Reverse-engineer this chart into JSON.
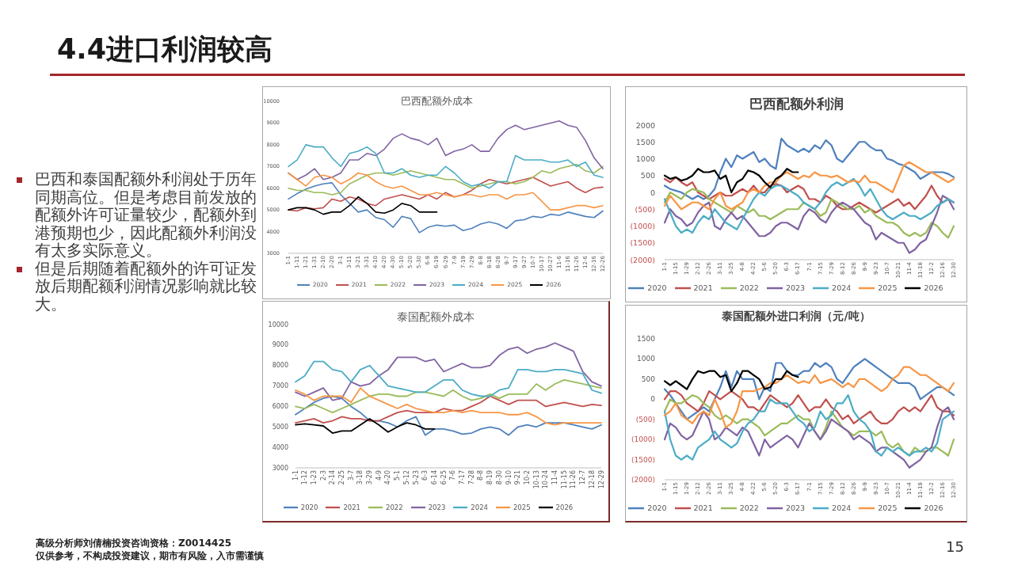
{
  "chart_data": [
    {
      "type": "other",
      "title": "4.4进口利润较高",
      "annotations": [
        "巴西和泰国配额外利润处于历年同期高位。但是考虑目前发放的配额外许可证量较少，配额外到港预期也少，因此配额外利润没有太多实际意义。",
        "但是后期随着配额外的许可证发放后期配额利润情况影响就比较大。"
      ]
    },
    {
      "type": "line",
      "title": "巴西配额外成本",
      "categories": [
        "1-1",
        "1-11",
        "1-21",
        "1-31",
        "2-10",
        "2-20",
        "3-1",
        "3-11",
        "3-21",
        "3-31",
        "4-10",
        "4-20",
        "4-30",
        "5-10",
        "5-20",
        "5-30",
        "6-9",
        "6-19",
        "6-29",
        "7-9",
        "7-19",
        "7-29",
        "8-8",
        "8-18",
        "8-28",
        "9-7",
        "9-17",
        "9-27",
        "10-7",
        "10-17",
        "10-27",
        "11-6",
        "11-16",
        "11-26",
        "12-6",
        "12-16",
        "12-26"
      ],
      "ylim": [
        3000,
        10000
      ],
      "yticks": [
        3000,
        4000,
        5000,
        6000,
        7000,
        8000,
        9000,
        10000
      ],
      "legend": "bottom",
      "marker": "none",
      "line_style": "solid",
      "series": [
        {
          "name": "2020",
          "color": "#4f81bd",
          "values": [
            5500,
            5750,
            5950,
            6100,
            6200,
            6250,
            5700,
            5300,
            4900,
            5000,
            4650,
            4550,
            4200,
            4700,
            4600,
            3950,
            4200,
            4300,
            4250,
            4300,
            4050,
            4150,
            4350,
            4450,
            4350,
            4150,
            4500,
            4550,
            4700,
            4650,
            4800,
            4750,
            4900,
            4800,
            4700,
            4650,
            4950
          ]
        },
        {
          "name": "2021",
          "color": "#c0504d",
          "values": [
            5000,
            4950,
            5100,
            5050,
            5100,
            5500,
            5400,
            5600,
            5500,
            5300,
            5200,
            5500,
            5600,
            5700,
            5600,
            5500,
            5700,
            5500,
            5800,
            5600,
            5700,
            5900,
            6200,
            6400,
            6300,
            6200,
            6300,
            6400,
            6500,
            6300,
            6100,
            6200,
            6300,
            6000,
            5800,
            6000,
            6050
          ]
        },
        {
          "name": "2022",
          "color": "#9bbb59",
          "values": [
            6000,
            5900,
            5900,
            5800,
            5800,
            5700,
            5800,
            6200,
            6400,
            6600,
            6700,
            6700,
            6600,
            6700,
            6800,
            6700,
            6600,
            6500,
            6400,
            6400,
            6200,
            6000,
            6100,
            6200,
            6300,
            6300,
            6200,
            6300,
            6500,
            6800,
            6700,
            6900,
            7000,
            7100,
            6800,
            6700,
            7000
          ]
        },
        {
          "name": "2023",
          "color": "#8064a2",
          "values": [
            6700,
            6400,
            6600,
            6900,
            6400,
            6500,
            6700,
            7300,
            7300,
            7600,
            7500,
            7800,
            8300,
            8500,
            8300,
            8200,
            8000,
            8300,
            7500,
            7700,
            7800,
            8000,
            7700,
            7700,
            8300,
            8700,
            8900,
            8700,
            8800,
            8900,
            9000,
            9100,
            8900,
            8800,
            8200,
            7400,
            6900
          ]
        },
        {
          "name": "2024",
          "color": "#4bacc6",
          "values": [
            7000,
            7300,
            8000,
            7900,
            7900,
            7400,
            7000,
            7600,
            7700,
            7900,
            7600,
            6700,
            6700,
            6900,
            6600,
            6500,
            6600,
            6600,
            7000,
            6700,
            6300,
            6100,
            6200,
            6000,
            6300,
            6300,
            7500,
            7300,
            7300,
            7300,
            7200,
            7200,
            7300,
            7000,
            7200,
            6600,
            6500
          ]
        },
        {
          "name": "2025",
          "color": "#f79646",
          "values": [
            6700,
            6400,
            6100,
            6500,
            6600,
            6500,
            6200,
            6400,
            6700,
            6600,
            6300,
            6100,
            6000,
            6100,
            5900,
            5700,
            5700,
            5800,
            5700,
            5600,
            5700,
            5700,
            5600,
            5700,
            5700,
            5500,
            5700,
            5700,
            5800,
            5400,
            5000,
            5000,
            5100,
            5200,
            5200,
            5100,
            5200
          ]
        },
        {
          "name": "2026",
          "color": "#000000",
          "values": [
            5000,
            5100,
            5100,
            5000,
            4800,
            4900,
            4900,
            5200,
            5600,
            5300,
            4900,
            4850,
            5000,
            5300,
            5200,
            4900,
            4900,
            4900,
            null,
            null,
            null,
            null,
            null,
            null,
            null,
            null,
            null,
            null,
            null,
            null,
            null,
            null,
            null,
            null,
            null,
            null,
            null
          ]
        }
      ]
    },
    {
      "type": "line",
      "title": "巴西配额外利润",
      "categories": [
        "1-1",
        null,
        "1-15",
        null,
        "1-29",
        null,
        "2-12",
        null,
        "2-26",
        null,
        "3-11",
        null,
        "3-25",
        null,
        "4-8",
        null,
        "4-22",
        null,
        "5-6",
        null,
        "5-20",
        null,
        "6-3",
        null,
        "6-17",
        null,
        "7-1",
        null,
        "7-15",
        null,
        "7-29",
        null,
        "8-12",
        null,
        "8-26",
        null,
        "9-9",
        null,
        "9-23",
        null,
        "10-7",
        null,
        "10-21",
        null,
        "11-4",
        null,
        "11-18",
        null,
        "12-2",
        null,
        "12-16",
        null,
        "12-30"
      ],
      "ylim": [
        -2000,
        2000
      ],
      "yticks": [
        {
          "value": -2000,
          "label": "(2000)"
        },
        {
          "value": -1500,
          "label": "(1500)"
        },
        {
          "value": -1000,
          "label": "(1000)"
        },
        {
          "value": -500,
          "label": "(500)"
        },
        0,
        500,
        1000,
        1500,
        2000
      ],
      "legend": "bottom",
      "marker": "none",
      "line_style": "solid",
      "series": [
        {
          "name": "2020",
          "color": "#4f81bd",
          "values": [
            200,
            100,
            50,
            0,
            -100,
            -200,
            -100,
            -200,
            -100,
            100,
            600,
            1000,
            750,
            1100,
            1000,
            1100,
            1200,
            900,
            1000,
            800,
            700,
            1600,
            1400,
            1300,
            1200,
            1300,
            1200,
            1400,
            1300,
            1550,
            1400,
            1000,
            900,
            1100,
            1300,
            1500,
            1500,
            1350,
            1250,
            1250,
            1000,
            950,
            850,
            800,
            700,
            600,
            400,
            500,
            600,
            600,
            600,
            550,
            450
          ]
        },
        {
          "name": "2021",
          "color": "#c0504d",
          "values": [
            400,
            300,
            450,
            300,
            200,
            300,
            0,
            -100,
            -200,
            -100,
            0,
            -100,
            -100,
            0,
            100,
            0,
            200,
            0,
            0,
            200,
            250,
            200,
            0,
            100,
            200,
            100,
            -200,
            -200,
            -300,
            -100,
            -200,
            -400,
            -500,
            -500,
            -400,
            -300,
            -400,
            -500,
            -600,
            -500,
            -400,
            -300,
            -200,
            -400,
            -300,
            -500,
            -300,
            -100,
            200,
            -100,
            -300,
            -200,
            -300
          ]
        },
        {
          "name": "2022",
          "color": "#9bbb59",
          "values": [
            -300,
            0,
            -100,
            -200,
            0,
            100,
            50,
            0,
            -200,
            -300,
            -400,
            -500,
            -600,
            -400,
            -500,
            -600,
            -500,
            -700,
            -700,
            -800,
            -700,
            -600,
            -500,
            -500,
            -500,
            -300,
            -400,
            -500,
            -700,
            -600,
            -200,
            -300,
            -400,
            -500,
            -500,
            -400,
            -600,
            -500,
            -700,
            -800,
            -900,
            -900,
            -1000,
            -1200,
            -1300,
            -1200,
            -1300,
            -1200,
            -900,
            -1000,
            -1200,
            -1350,
            -1000
          ]
        },
        {
          "name": "2023",
          "color": "#8064a2",
          "values": [
            -900,
            -500,
            -700,
            -800,
            -1000,
            -900,
            -600,
            -400,
            -300,
            -1000,
            -1100,
            -800,
            -600,
            -800,
            -700,
            -900,
            -1100,
            -1300,
            -1300,
            -1200,
            -1000,
            -900,
            -900,
            -1000,
            -1100,
            -700,
            -500,
            -600,
            -800,
            -900,
            -600,
            -400,
            -300,
            -400,
            -500,
            -700,
            -900,
            -1000,
            -1400,
            -1200,
            -1300,
            -1400,
            -1500,
            -1500,
            -1800,
            -1700,
            -1500,
            -1400,
            -1000,
            -600,
            -100,
            -200,
            -500
          ]
        },
        {
          "name": "2024",
          "color": "#4bacc6",
          "values": [
            -200,
            -600,
            -1000,
            -1200,
            -1100,
            -1200,
            -900,
            -700,
            -800,
            -500,
            -700,
            -900,
            -1000,
            -1100,
            -800,
            -500,
            -200,
            0,
            -100,
            100,
            200,
            200,
            100,
            0,
            -100,
            -300,
            -400,
            -500,
            -300,
            0,
            200,
            300,
            200,
            300,
            400,
            200,
            -100,
            100,
            -200,
            -500,
            -700,
            -800,
            -700,
            -600,
            -700,
            -700,
            -800,
            -700,
            -600,
            -400,
            -300,
            -200,
            -300
          ]
        },
        {
          "name": "2025",
          "color": "#f79646",
          "values": [
            -400,
            -100,
            -300,
            -500,
            -400,
            -300,
            -300,
            -400,
            -500,
            -200,
            0,
            -400,
            -500,
            -400,
            -300,
            0,
            100,
            0,
            200,
            300,
            300,
            500,
            600,
            500,
            400,
            500,
            450,
            600,
            500,
            500,
            450,
            500,
            400,
            300,
            350,
            300,
            500,
            300,
            300,
            200,
            100,
            0,
            400,
            800,
            900,
            800,
            700,
            600,
            600,
            500,
            400,
            300,
            400
          ]
        },
        {
          "name": "2026",
          "color": "#000000",
          "values": [
            500,
            400,
            450,
            350,
            400,
            500,
            700,
            600,
            600,
            650,
            400,
            500,
            0,
            300,
            400,
            650,
            600,
            500,
            300,
            150,
            400,
            500,
            700,
            600,
            600,
            null,
            null,
            null,
            null,
            null,
            null,
            null,
            null,
            null,
            null,
            null,
            null,
            null,
            null,
            null,
            null,
            null,
            null,
            null,
            null,
            null,
            null,
            null,
            null,
            null,
            null,
            null,
            null
          ]
        }
      ]
    },
    {
      "type": "line",
      "title": "泰国配额外成本",
      "categories": [
        "1-1",
        "1-12",
        "1-23",
        "2-3",
        "2-14",
        "2-25",
        "3-7",
        "3-18",
        "3-29",
        "4-9",
        "4-20",
        "5-1",
        "5-12",
        "5-23",
        "6-3",
        "6-14",
        "6-25",
        "7-6",
        "7-17",
        "7-28",
        "8-8",
        "8-19",
        "8-30",
        "9-10",
        "9-21",
        "10-2",
        "10-13",
        "10-24",
        "11-4",
        "11-15",
        "11-26",
        "12-7",
        "12-18",
        "12-29"
      ],
      "ylim": [
        3000,
        10000
      ],
      "yticks": [
        3000,
        4000,
        5000,
        6000,
        7000,
        8000,
        9000,
        10000
      ],
      "legend": "bottom",
      "marker": "none",
      "line_style": "solid",
      "series": [
        {
          "name": "2020",
          "color": "#4f81bd",
          "values": [
            5600,
            5900,
            6200,
            6400,
            6500,
            6400,
            6000,
            5700,
            5300,
            5300,
            5200,
            5000,
            5300,
            5500,
            4600,
            4900,
            4900,
            4800,
            4650,
            4700,
            4900,
            5000,
            4900,
            4600,
            5000,
            5100,
            5000,
            5200,
            5200,
            5200,
            5100,
            5000,
            4900,
            5100
          ]
        },
        {
          "name": "2021",
          "color": "#c0504d",
          "values": [
            5200,
            5300,
            5400,
            5200,
            5300,
            5500,
            5400,
            5400,
            5300,
            5300,
            5500,
            5700,
            5800,
            5700,
            5700,
            5700,
            5900,
            5800,
            5800,
            6000,
            6200,
            6500,
            6300,
            6100,
            6300,
            6300,
            6300,
            6000,
            6100,
            6200,
            6100,
            6000,
            6100,
            6050
          ]
        },
        {
          "name": "2022",
          "color": "#9bbb59",
          "values": [
            6000,
            5900,
            6100,
            5900,
            5700,
            5900,
            6100,
            6300,
            6500,
            6600,
            6600,
            6500,
            6500,
            6700,
            6700,
            6600,
            6500,
            6800,
            6500,
            6300,
            6400,
            6600,
            6400,
            6600,
            6600,
            6600,
            7100,
            6800,
            7100,
            7300,
            7200,
            7100,
            7000,
            6900
          ]
        },
        {
          "name": "2023",
          "color": "#8064a2",
          "values": [
            6700,
            6500,
            6700,
            6900,
            6300,
            6400,
            7200,
            7000,
            7100,
            7500,
            7800,
            8400,
            8400,
            8400,
            8200,
            8300,
            7700,
            7900,
            8100,
            7900,
            7900,
            8000,
            8500,
            8800,
            8900,
            8600,
            8800,
            8900,
            9100,
            8900,
            8700,
            7700,
            7200,
            7000
          ]
        },
        {
          "name": "2024",
          "color": "#4bacc6",
          "values": [
            7200,
            7500,
            8200,
            8200,
            7800,
            7700,
            7200,
            7800,
            8000,
            7500,
            7000,
            6900,
            6800,
            6700,
            6700,
            7000,
            7300,
            7300,
            6800,
            6600,
            6500,
            6500,
            6800,
            6900,
            7800,
            7800,
            7700,
            7700,
            7800,
            7800,
            7700,
            7600,
            6800,
            6650
          ]
        },
        {
          "name": "2025",
          "color": "#f79646",
          "values": [
            6800,
            6600,
            6300,
            6500,
            6500,
            6500,
            6200,
            6900,
            6500,
            6300,
            6100,
            5900,
            6100,
            5900,
            5800,
            5700,
            5700,
            5800,
            5700,
            5800,
            5700,
            5700,
            5700,
            5600,
            5600,
            5700,
            5500,
            5200,
            5100,
            5200,
            5200,
            5200,
            5200,
            5200
          ]
        },
        {
          "name": "2026",
          "color": "#000000",
          "values": [
            5100,
            5150,
            5100,
            5050,
            4700,
            4800,
            4800,
            5100,
            5400,
            5100,
            4750,
            5000,
            5200,
            5100,
            4900,
            4900,
            null,
            null,
            null,
            null,
            null,
            null,
            null,
            null,
            null,
            null,
            null,
            null,
            null,
            null,
            null,
            null,
            null,
            null
          ]
        }
      ]
    },
    {
      "type": "line",
      "title": "泰国配额外进口利润（元/吨）",
      "categories": [
        "1-1",
        null,
        "1-15",
        null,
        "1-29",
        null,
        "2-12",
        null,
        "2-26",
        null,
        "3-11",
        null,
        "3-25",
        null,
        "4-8",
        null,
        "4-22",
        null,
        "5-6",
        null,
        "5-20",
        null,
        "6-3",
        null,
        "6-17",
        null,
        "7-1",
        null,
        "7-15",
        null,
        "7-29",
        null,
        "8-12",
        null,
        "8-26",
        null,
        "9-9",
        null,
        "9-23",
        null,
        "10-7",
        null,
        "10-21",
        null,
        "11-4",
        null,
        "11-18",
        null,
        "12-2",
        null,
        "12-16",
        null,
        "12-30"
      ],
      "ylim": [
        -2000,
        1500
      ],
      "yticks": [
        {
          "value": -2000,
          "label": "(2000)"
        },
        {
          "value": -1500,
          "label": "(1500)"
        },
        {
          "value": -1000,
          "label": "(1000)"
        },
        {
          "value": -500,
          "label": "(500)"
        },
        0,
        500,
        1000,
        1500
      ],
      "legend": "bottom",
      "marker": "none",
      "line_style": "solid",
      "series": [
        {
          "name": "2020",
          "color": "#4f81bd",
          "values": [
            250,
            100,
            -100,
            -300,
            -500,
            -400,
            -300,
            -200,
            -300,
            0,
            300,
            700,
            300,
            700,
            500,
            500,
            500,
            0,
            300,
            200,
            900,
            900,
            700,
            600,
            600,
            700,
            700,
            900,
            800,
            900,
            800,
            500,
            400,
            600,
            800,
            900,
            1000,
            900,
            800,
            700,
            600,
            500,
            400,
            400,
            400,
            300,
            0,
            100,
            200,
            300,
            300,
            200,
            100
          ]
        },
        {
          "name": "2021",
          "color": "#c0504d",
          "values": [
            0,
            200,
            200,
            100,
            -100,
            -200,
            -300,
            -100,
            200,
            100,
            0,
            100,
            200,
            100,
            0,
            -200,
            -200,
            -300,
            -100,
            100,
            0,
            -100,
            -200,
            -100,
            100,
            -100,
            -300,
            -200,
            -200,
            0,
            -200,
            -300,
            -500,
            -400,
            -600,
            -500,
            -400,
            -300,
            -500,
            -600,
            -600,
            -500,
            -300,
            -200,
            -300,
            -200,
            -300,
            -100,
            100,
            -200,
            -300,
            -300,
            -400
          ]
        },
        {
          "name": "2022",
          "color": "#9bbb59",
          "values": [
            -300,
            0,
            -100,
            -100,
            0,
            100,
            50,
            -100,
            -200,
            -400,
            -500,
            -400,
            -500,
            -600,
            -500,
            -500,
            -600,
            -700,
            -900,
            -800,
            -700,
            -600,
            -600,
            -500,
            -400,
            -500,
            -500,
            -800,
            -1000,
            -700,
            -300,
            -500,
            -700,
            -800,
            -900,
            -800,
            -800,
            -800,
            -900,
            -800,
            -1100,
            -1200,
            -1100,
            -1300,
            -1400,
            -1200,
            -1300,
            -1300,
            -1200,
            -1200,
            -1300,
            -1400,
            -1000
          ]
        },
        {
          "name": "2023",
          "color": "#8064a2",
          "values": [
            -1000,
            -600,
            -700,
            -900,
            -1000,
            -900,
            -600,
            -300,
            -500,
            -1000,
            -900,
            -700,
            -800,
            -900,
            -700,
            -800,
            -1100,
            -1400,
            -1000,
            -1200,
            -1100,
            -1000,
            -900,
            -1000,
            -1200,
            -900,
            -600,
            -800,
            -1000,
            -800,
            -500,
            -600,
            -700,
            -800,
            -1000,
            -900,
            -1000,
            -1100,
            -1300,
            -1200,
            -1200,
            -1300,
            -1400,
            -1500,
            -1700,
            -1600,
            -1500,
            -1300,
            -1200,
            -700,
            -300,
            -200,
            -500
          ]
        },
        {
          "name": "2024",
          "color": "#4bacc6",
          "values": [
            -300,
            -1000,
            -1400,
            -1500,
            -1400,
            -1500,
            -1200,
            -1100,
            -1000,
            -800,
            -1000,
            -1100,
            -1200,
            -1100,
            -800,
            -600,
            -500,
            -300,
            -300,
            0,
            -100,
            -100,
            -100,
            -300,
            -500,
            -600,
            -800,
            -700,
            -300,
            -500,
            -400,
            -100,
            -100,
            100,
            -300,
            -500,
            -600,
            -800,
            -1300,
            -1400,
            -1200,
            -1300,
            -1200,
            -1300,
            -1400,
            -1300,
            -1300,
            -1200,
            -1300,
            -1100,
            -500,
            -400,
            -300
          ]
        },
        {
          "name": "2025",
          "color": "#f79646",
          "values": [
            -400,
            -300,
            -100,
            -400,
            -500,
            -600,
            -400,
            -300,
            -400,
            0,
            -300,
            -700,
            -600,
            -300,
            200,
            200,
            200,
            250,
            300,
            400,
            400,
            500,
            600,
            500,
            400,
            450,
            400,
            600,
            400,
            450,
            500,
            400,
            300,
            400,
            300,
            500,
            500,
            400,
            300,
            200,
            300,
            500,
            600,
            800,
            800,
            700,
            600,
            600,
            500,
            400,
            300,
            200,
            400
          ]
        },
        {
          "name": "2026",
          "color": "#000000",
          "values": [
            450,
            350,
            450,
            350,
            250,
            500,
            700,
            650,
            700,
            700,
            550,
            600,
            200,
            400,
            700,
            700,
            600,
            500,
            250,
            300,
            500,
            500,
            700,
            600,
            550,
            null,
            null,
            null,
            null,
            null,
            null,
            null,
            null,
            null,
            null,
            null,
            null,
            null,
            null,
            null,
            null,
            null,
            null,
            null,
            null,
            null,
            null,
            null,
            null,
            null,
            null,
            null,
            null
          ]
        }
      ]
    },
    {
      "type": "other",
      "annotations": [
        "高级分析师刘倩楠投资咨询资格：Z0014425",
        "仅供参考，不构成投资建议，期市有风险，入市需谨慎",
        "15"
      ]
    }
  ]
}
